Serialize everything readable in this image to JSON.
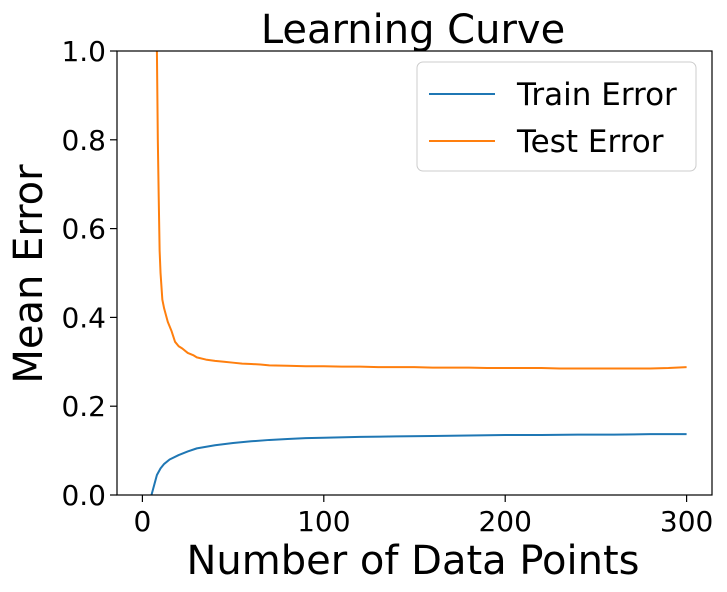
{
  "chart_data": {
    "type": "line",
    "title": "Learning Curve",
    "xlabel": "Number of Data Points",
    "ylabel": "Mean Error",
    "xlim": [
      -14,
      314
    ],
    "ylim": [
      0,
      1.0
    ],
    "xticks": [
      0,
      100,
      200,
      300
    ],
    "xtick_labels": [
      "0",
      "100",
      "200",
      "300"
    ],
    "yticks": [
      0.0,
      0.2,
      0.4,
      0.6,
      0.8,
      1.0
    ],
    "ytick_labels": [
      "0.0",
      "0.2",
      "0.4",
      "0.6",
      "0.8",
      "1.0"
    ],
    "grid": false,
    "legend_position": "top-right",
    "series": [
      {
        "name": "Train Error",
        "color": "#1f77b4",
        "x": [
          5,
          6,
          7,
          8,
          10,
          12,
          15,
          20,
          25,
          30,
          40,
          50,
          60,
          70,
          80,
          90,
          100,
          120,
          140,
          160,
          180,
          200,
          220,
          240,
          260,
          280,
          300
        ],
        "y": [
          0.0,
          0.015,
          0.03,
          0.045,
          0.06,
          0.07,
          0.08,
          0.09,
          0.098,
          0.105,
          0.112,
          0.117,
          0.121,
          0.124,
          0.126,
          0.128,
          0.129,
          0.131,
          0.132,
          0.133,
          0.134,
          0.135,
          0.135,
          0.136,
          0.136,
          0.137,
          0.137
        ]
      },
      {
        "name": "Test Error",
        "color": "#ff7f0e",
        "x": [
          8,
          8.5,
          9,
          9.5,
          10,
          11,
          12,
          14,
          16,
          18,
          20,
          22,
          25,
          28,
          30,
          35,
          40,
          45,
          50,
          55,
          60,
          65,
          70,
          80,
          90,
          100,
          110,
          120,
          130,
          140,
          150,
          160,
          170,
          180,
          190,
          200,
          210,
          220,
          230,
          240,
          250,
          260,
          270,
          280,
          290,
          300
        ],
        "y": [
          1.0,
          0.8,
          0.67,
          0.55,
          0.5,
          0.44,
          0.42,
          0.39,
          0.37,
          0.345,
          0.335,
          0.33,
          0.32,
          0.315,
          0.31,
          0.305,
          0.302,
          0.3,
          0.298,
          0.296,
          0.295,
          0.294,
          0.292,
          0.291,
          0.29,
          0.29,
          0.289,
          0.289,
          0.288,
          0.288,
          0.288,
          0.287,
          0.287,
          0.287,
          0.286,
          0.286,
          0.286,
          0.286,
          0.285,
          0.285,
          0.285,
          0.285,
          0.285,
          0.285,
          0.286,
          0.288
        ]
      }
    ]
  }
}
